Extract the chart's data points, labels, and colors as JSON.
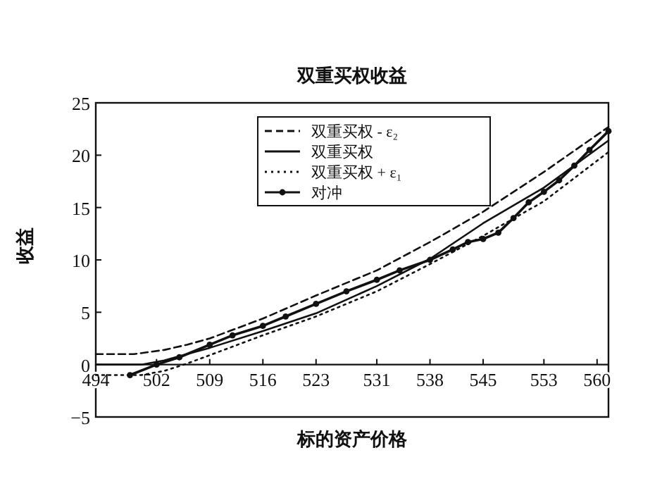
{
  "chart_data": {
    "type": "line",
    "title": "双重买权收益",
    "xlabel": "标的资产价格",
    "ylabel": "收益",
    "xlim": [
      494,
      561.5
    ],
    "ylim": [
      -5,
      25
    ],
    "xticks": [
      494,
      502,
      509,
      516,
      523,
      531,
      538,
      545,
      553,
      560
    ],
    "yticks": [
      {
        "value": -5,
        "label": "−5"
      },
      0,
      5,
      10,
      15,
      20,
      25
    ],
    "grid": false,
    "legend": "top",
    "series": [
      {
        "name": "双重买权 - ε₂",
        "color": "#111111",
        "line_style": "dashed",
        "marker": "none",
        "x": [
          494,
          499,
          503,
          506,
          509,
          516,
          523,
          531,
          538,
          545,
          553,
          561.5
        ],
        "values": [
          1.0,
          1.0,
          1.4,
          1.9,
          2.5,
          4.4,
          6.6,
          9.0,
          11.7,
          14.6,
          18.4,
          22.7
        ]
      },
      {
        "name": "双重买权",
        "color": "#111111",
        "line_style": "solid",
        "marker": "none",
        "x": [
          494,
          500,
          503,
          506,
          509,
          516,
          523,
          531,
          538,
          545,
          553,
          561.5
        ],
        "values": [
          0,
          0,
          0.4,
          1.0,
          1.6,
          3.2,
          4.9,
          7.5,
          10.1,
          13.5,
          16.9,
          21.4
        ]
      },
      {
        "name": "双重买权 + ε₁",
        "color": "#111111",
        "line_style": "dotted",
        "marker": "none",
        "x": [
          494,
          500,
          503,
          506,
          509,
          516,
          523,
          531,
          538,
          545,
          553,
          561.5
        ],
        "values": [
          -1.0,
          -1.0,
          -0.6,
          0.1,
          0.9,
          2.8,
          4.6,
          7.0,
          9.6,
          12.3,
          15.6,
          20.3
        ]
      },
      {
        "name": "对冲",
        "color": "#111111",
        "line_style": "solid",
        "marker": "circle",
        "x": [
          498.5,
          502,
          505,
          509,
          512,
          516,
          519,
          523,
          527,
          531,
          534,
          538,
          541,
          543,
          545,
          547,
          549,
          551,
          553,
          555,
          557,
          559,
          561.5
        ],
        "values": [
          -1.0,
          0,
          0.7,
          1.9,
          2.8,
          3.7,
          4.6,
          5.8,
          7.0,
          8.1,
          9.0,
          10.0,
          11.0,
          11.7,
          12.0,
          12.6,
          14.0,
          15.5,
          16.5,
          17.6,
          19.0,
          20.5,
          22.3
        ]
      }
    ]
  }
}
